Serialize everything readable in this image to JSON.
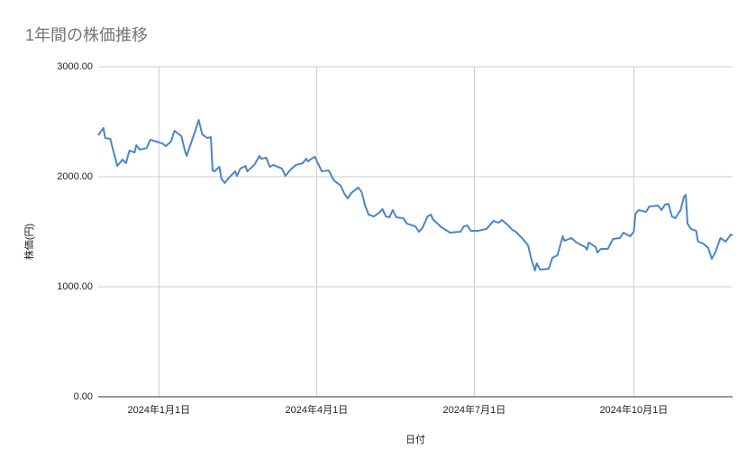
{
  "chart_data": {
    "type": "line",
    "title": "1年間の株価推移",
    "x_label": "日付",
    "y_label": "株価(円)",
    "color": "#4a86c8",
    "grid": true,
    "x": [
      "2023-11-27",
      "2023-11-30",
      "2023-12-01",
      "2023-12-04",
      "2023-12-05",
      "2023-12-08",
      "2023-12-11",
      "2023-12-13",
      "2023-12-15",
      "2023-12-18",
      "2023-12-19",
      "2023-12-21",
      "2023-12-25",
      "2023-12-27",
      "2024-01-03",
      "2024-01-05",
      "2024-01-08",
      "2024-01-10",
      "2024-01-14",
      "2024-01-16",
      "2024-01-17",
      "2024-01-22",
      "2024-01-24",
      "2024-01-26",
      "2024-01-29",
      "2024-01-31",
      "2024-02-01",
      "2024-02-02",
      "2024-02-05",
      "2024-02-06",
      "2024-02-08",
      "2024-02-10",
      "2024-02-14",
      "2024-02-15",
      "2024-02-17",
      "2024-02-20",
      "2024-02-21",
      "2024-02-25",
      "2024-02-28",
      "2024-02-29",
      "2024-03-03",
      "2024-03-05",
      "2024-03-07",
      "2024-03-12",
      "2024-03-14",
      "2024-03-17",
      "2024-03-20",
      "2024-03-24",
      "2024-03-26",
      "2024-03-27",
      "2024-03-29",
      "2024-03-31",
      "2024-04-02",
      "2024-04-04",
      "2024-04-08",
      "2024-04-11",
      "2024-04-15",
      "2024-04-17",
      "2024-04-19",
      "2024-04-21",
      "2024-04-25",
      "2024-04-27",
      "2024-04-29",
      "2024-05-01",
      "2024-05-04",
      "2024-05-07",
      "2024-05-09",
      "2024-05-11",
      "2024-05-13",
      "2024-05-15",
      "2024-05-17",
      "2024-05-21",
      "2024-05-23",
      "2024-05-28",
      "2024-05-30",
      "2024-06-01",
      "2024-06-04",
      "2024-06-06",
      "2024-06-07",
      "2024-06-12",
      "2024-06-17",
      "2024-06-23",
      "2024-06-25",
      "2024-06-27",
      "2024-06-29",
      "2024-07-03",
      "2024-07-08",
      "2024-07-12",
      "2024-07-15",
      "2024-07-17",
      "2024-07-20",
      "2024-07-23",
      "2024-07-25",
      "2024-07-29",
      "2024-08-01",
      "2024-08-03",
      "2024-08-05",
      "2024-08-06",
      "2024-08-08",
      "2024-08-13",
      "2024-08-15",
      "2024-08-18",
      "2024-08-21",
      "2024-08-22",
      "2024-08-26",
      "2024-08-29",
      "2024-09-03",
      "2024-09-04",
      "2024-09-05",
      "2024-09-09",
      "2024-09-10",
      "2024-09-12",
      "2024-09-16",
      "2024-09-19",
      "2024-09-23",
      "2024-09-25",
      "2024-09-27",
      "2024-09-29",
      "2024-10-01",
      "2024-10-02",
      "2024-10-04",
      "2024-10-08",
      "2024-10-10",
      "2024-10-15",
      "2024-10-17",
      "2024-10-19",
      "2024-10-21",
      "2024-10-23",
      "2024-10-25",
      "2024-10-28",
      "2024-10-30",
      "2024-10-31",
      "2024-11-01",
      "2024-11-03",
      "2024-11-06",
      "2024-11-07",
      "2024-11-10",
      "2024-11-13",
      "2024-11-15",
      "2024-11-17",
      "2024-11-20",
      "2024-11-23",
      "2024-11-26",
      "2024-11-27"
    ],
    "values": [
      2377,
      2443,
      2352,
      2344,
      2279,
      2098,
      2156,
      2123,
      2238,
      2221,
      2287,
      2246,
      2262,
      2336,
      2303,
      2279,
      2320,
      2418,
      2369,
      2238,
      2189,
      2418,
      2516,
      2385,
      2352,
      2361,
      2057,
      2049,
      2090,
      1984,
      1943,
      1984,
      2049,
      2008,
      2074,
      2098,
      2049,
      2107,
      2189,
      2164,
      2172,
      2090,
      2107,
      2074,
      2008,
      2066,
      2107,
      2123,
      2164,
      2139,
      2164,
      2180,
      2115,
      2049,
      2057,
      1967,
      1918,
      1844,
      1803,
      1852,
      1902,
      1861,
      1738,
      1656,
      1639,
      1672,
      1705,
      1639,
      1631,
      1697,
      1631,
      1623,
      1574,
      1549,
      1500,
      1533,
      1639,
      1656,
      1615,
      1541,
      1492,
      1500,
      1549,
      1557,
      1508,
      1508,
      1525,
      1598,
      1582,
      1607,
      1566,
      1516,
      1500,
      1434,
      1377,
      1246,
      1148,
      1213,
      1156,
      1164,
      1262,
      1287,
      1459,
      1418,
      1443,
      1402,
      1361,
      1336,
      1402,
      1361,
      1311,
      1344,
      1344,
      1434,
      1443,
      1492,
      1475,
      1459,
      1500,
      1664,
      1697,
      1680,
      1730,
      1738,
      1697,
      1746,
      1754,
      1639,
      1623,
      1697,
      1820,
      1836,
      1574,
      1525,
      1508,
      1410,
      1393,
      1352,
      1254,
      1311,
      1443,
      1410,
      1475,
      1467
    ],
    "xlim": [
      "2023-11-27",
      "2024-11-27"
    ],
    "xticks": [
      {
        "value": "2024-01-01",
        "label": "2024年1月1日"
      },
      {
        "value": "2024-04-01",
        "label": "2024年4月1日"
      },
      {
        "value": "2024-07-01",
        "label": "2024年7月1日"
      },
      {
        "value": "2024-10-01",
        "label": "2024年10月1日"
      }
    ],
    "ylim": [
      0,
      3000
    ],
    "yticks": [
      {
        "value": 0,
        "label": "0.00"
      },
      {
        "value": 1000,
        "label": "1000.00"
      },
      {
        "value": 2000,
        "label": "2000.00"
      },
      {
        "value": 3000,
        "label": "3000.00"
      }
    ]
  }
}
